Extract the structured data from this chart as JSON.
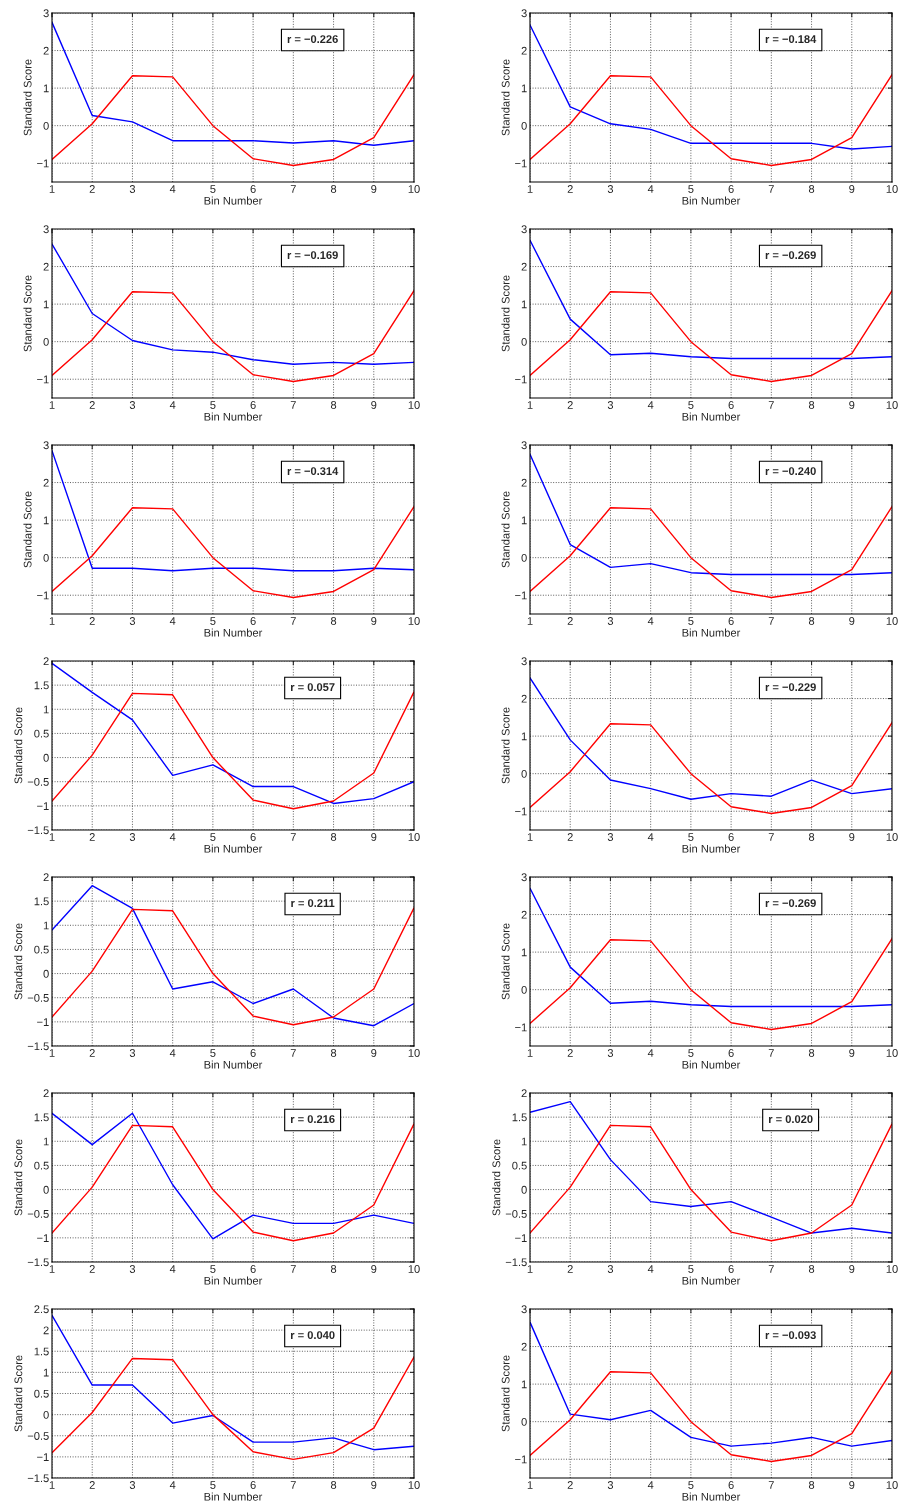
{
  "chart_data": [
    {
      "type": "line",
      "xlabel": "Bin Number",
      "ylabel": "Standard Score",
      "annotations": [
        "r = −0.226"
      ],
      "x": [
        1,
        2,
        3,
        4,
        5,
        6,
        7,
        8,
        9,
        10
      ],
      "xlim": [
        1,
        10
      ],
      "xticks": [
        1,
        2,
        3,
        4,
        5,
        6,
        7,
        8,
        9,
        10
      ],
      "ylim": [
        -1.5,
        3
      ],
      "yticks": [
        -1,
        0,
        1,
        2,
        3
      ],
      "grid": true,
      "line_style": "solid",
      "marker": "none",
      "series": [
        {
          "color": "#0000ff",
          "values": [
            2.75,
            0.27,
            0.1,
            -0.4,
            -0.4,
            -0.4,
            -0.46,
            -0.4,
            -0.52,
            -0.4
          ]
        },
        {
          "color": "#ff0000",
          "values": [
            -0.9,
            0.05,
            1.33,
            1.3,
            0.0,
            -0.88,
            -1.06,
            -0.9,
            -0.32,
            1.36
          ]
        }
      ]
    },
    {
      "type": "line",
      "xlabel": "Bin Number",
      "ylabel": "Standard Score",
      "annotations": [
        "r = −0.184"
      ],
      "x": [
        1,
        2,
        3,
        4,
        5,
        6,
        7,
        8,
        9,
        10
      ],
      "xlim": [
        1,
        10
      ],
      "xticks": [
        1,
        2,
        3,
        4,
        5,
        6,
        7,
        8,
        9,
        10
      ],
      "ylim": [
        -1.5,
        3
      ],
      "yticks": [
        -1,
        0,
        1,
        2,
        3
      ],
      "grid": true,
      "line_style": "solid",
      "marker": "none",
      "series": [
        {
          "color": "#0000ff",
          "values": [
            2.68,
            0.5,
            0.05,
            -0.1,
            -0.47,
            -0.47,
            -0.47,
            -0.47,
            -0.62,
            -0.55
          ]
        },
        {
          "color": "#ff0000",
          "values": [
            -0.9,
            0.05,
            1.33,
            1.3,
            0.0,
            -0.88,
            -1.06,
            -0.9,
            -0.32,
            1.36
          ]
        }
      ]
    },
    {
      "type": "line",
      "xlabel": "Bin Number",
      "ylabel": "Standard Score",
      "annotations": [
        "r = −0.169"
      ],
      "x": [
        1,
        2,
        3,
        4,
        5,
        6,
        7,
        8,
        9,
        10
      ],
      "xlim": [
        1,
        10
      ],
      "xticks": [
        1,
        2,
        3,
        4,
        5,
        6,
        7,
        8,
        9,
        10
      ],
      "ylim": [
        -1.5,
        3
      ],
      "yticks": [
        -1,
        0,
        1,
        2,
        3
      ],
      "grid": true,
      "line_style": "solid",
      "marker": "none",
      "series": [
        {
          "color": "#0000ff",
          "values": [
            2.6,
            0.75,
            0.03,
            -0.22,
            -0.28,
            -0.48,
            -0.6,
            -0.55,
            -0.6,
            -0.55
          ]
        },
        {
          "color": "#ff0000",
          "values": [
            -0.9,
            0.05,
            1.33,
            1.3,
            0.0,
            -0.88,
            -1.06,
            -0.9,
            -0.32,
            1.36
          ]
        }
      ]
    },
    {
      "type": "line",
      "xlabel": "Bin Number",
      "ylabel": "Standard Score",
      "annotations": [
        "r = −0.269"
      ],
      "x": [
        1,
        2,
        3,
        4,
        5,
        6,
        7,
        8,
        9,
        10
      ],
      "xlim": [
        1,
        10
      ],
      "xticks": [
        1,
        2,
        3,
        4,
        5,
        6,
        7,
        8,
        9,
        10
      ],
      "ylim": [
        -1.5,
        3
      ],
      "yticks": [
        -1,
        0,
        1,
        2,
        3
      ],
      "grid": true,
      "line_style": "solid",
      "marker": "none",
      "series": [
        {
          "color": "#0000ff",
          "values": [
            2.7,
            0.6,
            -0.35,
            -0.31,
            -0.4,
            -0.45,
            -0.45,
            -0.45,
            -0.45,
            -0.4
          ]
        },
        {
          "color": "#ff0000",
          "values": [
            -0.9,
            0.05,
            1.33,
            1.3,
            0.0,
            -0.88,
            -1.06,
            -0.9,
            -0.32,
            1.36
          ]
        }
      ]
    },
    {
      "type": "line",
      "xlabel": "Bin Number",
      "ylabel": "Standard Score",
      "annotations": [
        "r = −0.314"
      ],
      "x": [
        1,
        2,
        3,
        4,
        5,
        6,
        7,
        8,
        9,
        10
      ],
      "xlim": [
        1,
        10
      ],
      "xticks": [
        1,
        2,
        3,
        4,
        5,
        6,
        7,
        8,
        9,
        10
      ],
      "ylim": [
        -1.5,
        3
      ],
      "yticks": [
        -1,
        0,
        1,
        2,
        3
      ],
      "grid": true,
      "line_style": "solid",
      "marker": "none",
      "series": [
        {
          "color": "#0000ff",
          "values": [
            2.85,
            -0.28,
            -0.28,
            -0.35,
            -0.28,
            -0.28,
            -0.35,
            -0.35,
            -0.28,
            -0.32
          ]
        },
        {
          "color": "#ff0000",
          "values": [
            -0.9,
            0.05,
            1.33,
            1.3,
            0.0,
            -0.88,
            -1.06,
            -0.9,
            -0.32,
            1.36
          ]
        }
      ]
    },
    {
      "type": "line",
      "xlabel": "Bin Number",
      "ylabel": "Standard Score",
      "annotations": [
        "r = −0.240"
      ],
      "x": [
        1,
        2,
        3,
        4,
        5,
        6,
        7,
        8,
        9,
        10
      ],
      "xlim": [
        1,
        10
      ],
      "xticks": [
        1,
        2,
        3,
        4,
        5,
        6,
        7,
        8,
        9,
        10
      ],
      "ylim": [
        -1.5,
        3
      ],
      "yticks": [
        -1,
        0,
        1,
        2,
        3
      ],
      "grid": true,
      "line_style": "solid",
      "marker": "none",
      "series": [
        {
          "color": "#0000ff",
          "values": [
            2.75,
            0.35,
            -0.26,
            -0.16,
            -0.4,
            -0.45,
            -0.45,
            -0.45,
            -0.45,
            -0.4
          ]
        },
        {
          "color": "#ff0000",
          "values": [
            -0.9,
            0.05,
            1.33,
            1.3,
            0.0,
            -0.88,
            -1.06,
            -0.9,
            -0.32,
            1.36
          ]
        }
      ]
    },
    {
      "type": "line",
      "xlabel": "Bin Number",
      "ylabel": "Standard Score",
      "annotations": [
        "r = 0.057"
      ],
      "x": [
        1,
        2,
        3,
        4,
        5,
        6,
        7,
        8,
        9,
        10
      ],
      "xlim": [
        1,
        10
      ],
      "xticks": [
        1,
        2,
        3,
        4,
        5,
        6,
        7,
        8,
        9,
        10
      ],
      "ylim": [
        -1.5,
        2
      ],
      "yticks": [
        -1.5,
        -1,
        -0.5,
        0,
        0.5,
        1,
        1.5,
        2
      ],
      "grid": true,
      "line_style": "solid",
      "marker": "none",
      "series": [
        {
          "color": "#0000ff",
          "values": [
            1.95,
            1.35,
            0.78,
            -0.37,
            -0.15,
            -0.6,
            -0.6,
            -0.95,
            -0.85,
            -0.5
          ]
        },
        {
          "color": "#ff0000",
          "values": [
            -0.9,
            0.05,
            1.33,
            1.3,
            0.0,
            -0.88,
            -1.06,
            -0.9,
            -0.32,
            1.36
          ]
        }
      ]
    },
    {
      "type": "line",
      "xlabel": "Bin Number",
      "ylabel": "Standard Score",
      "annotations": [
        "r = −0.229"
      ],
      "x": [
        1,
        2,
        3,
        4,
        5,
        6,
        7,
        8,
        9,
        10
      ],
      "xlim": [
        1,
        10
      ],
      "xticks": [
        1,
        2,
        3,
        4,
        5,
        6,
        7,
        8,
        9,
        10
      ],
      "ylim": [
        -1.5,
        3
      ],
      "yticks": [
        -1,
        0,
        1,
        2,
        3
      ],
      "grid": true,
      "line_style": "solid",
      "marker": "none",
      "series": [
        {
          "color": "#0000ff",
          "values": [
            2.55,
            0.9,
            -0.17,
            -0.4,
            -0.68,
            -0.53,
            -0.6,
            -0.17,
            -0.53,
            -0.4
          ]
        },
        {
          "color": "#ff0000",
          "values": [
            -0.9,
            0.05,
            1.33,
            1.3,
            0.0,
            -0.88,
            -1.06,
            -0.9,
            -0.32,
            1.36
          ]
        }
      ]
    },
    {
      "type": "line",
      "xlabel": "Bin Number",
      "ylabel": "Standard Score",
      "annotations": [
        "r = 0.211"
      ],
      "x": [
        1,
        2,
        3,
        4,
        5,
        6,
        7,
        8,
        9,
        10
      ],
      "xlim": [
        1,
        10
      ],
      "xticks": [
        1,
        2,
        3,
        4,
        5,
        6,
        7,
        8,
        9,
        10
      ],
      "ylim": [
        -1.5,
        2
      ],
      "yticks": [
        -1.5,
        -1,
        -0.5,
        0,
        0.5,
        1,
        1.5,
        2
      ],
      "grid": true,
      "line_style": "solid",
      "marker": "none",
      "series": [
        {
          "color": "#0000ff",
          "values": [
            0.9,
            1.82,
            1.35,
            -0.32,
            -0.17,
            -0.62,
            -0.32,
            -0.92,
            -1.08,
            -0.62
          ]
        },
        {
          "color": "#ff0000",
          "values": [
            -0.9,
            0.05,
            1.33,
            1.3,
            0.0,
            -0.88,
            -1.06,
            -0.9,
            -0.32,
            1.36
          ]
        }
      ]
    },
    {
      "type": "line",
      "xlabel": "Bin Number",
      "ylabel": "Standard Score",
      "annotations": [
        "r = −0.269"
      ],
      "x": [
        1,
        2,
        3,
        4,
        5,
        6,
        7,
        8,
        9,
        10
      ],
      "xlim": [
        1,
        10
      ],
      "xticks": [
        1,
        2,
        3,
        4,
        5,
        6,
        7,
        8,
        9,
        10
      ],
      "ylim": [
        -1.5,
        3
      ],
      "yticks": [
        -1,
        0,
        1,
        2,
        3
      ],
      "grid": true,
      "line_style": "solid",
      "marker": "none",
      "series": [
        {
          "color": "#0000ff",
          "values": [
            2.7,
            0.6,
            -0.36,
            -0.31,
            -0.4,
            -0.45,
            -0.45,
            -0.45,
            -0.45,
            -0.4
          ]
        },
        {
          "color": "#ff0000",
          "values": [
            -0.9,
            0.05,
            1.33,
            1.3,
            0.0,
            -0.88,
            -1.06,
            -0.9,
            -0.32,
            1.36
          ]
        }
      ]
    },
    {
      "type": "line",
      "xlabel": "Bin Number",
      "ylabel": "Standard Score",
      "annotations": [
        "r = 0.216"
      ],
      "x": [
        1,
        2,
        3,
        4,
        5,
        6,
        7,
        8,
        9,
        10
      ],
      "xlim": [
        1,
        10
      ],
      "xticks": [
        1,
        2,
        3,
        4,
        5,
        6,
        7,
        8,
        9,
        10
      ],
      "ylim": [
        -1.5,
        2
      ],
      "yticks": [
        -1.5,
        -1,
        -0.5,
        0,
        0.5,
        1,
        1.5,
        2
      ],
      "grid": true,
      "line_style": "solid",
      "marker": "none",
      "series": [
        {
          "color": "#0000ff",
          "values": [
            1.58,
            0.93,
            1.58,
            0.1,
            -1.02,
            -0.53,
            -0.7,
            -0.7,
            -0.53,
            -0.7
          ]
        },
        {
          "color": "#ff0000",
          "values": [
            -0.9,
            0.05,
            1.33,
            1.3,
            0.0,
            -0.88,
            -1.06,
            -0.9,
            -0.32,
            1.36
          ]
        }
      ]
    },
    {
      "type": "line",
      "xlabel": "Bin Number",
      "ylabel": "Standard Score",
      "annotations": [
        "r = 0.020"
      ],
      "x": [
        1,
        2,
        3,
        4,
        5,
        6,
        7,
        8,
        9,
        10
      ],
      "xlim": [
        1,
        10
      ],
      "xticks": [
        1,
        2,
        3,
        4,
        5,
        6,
        7,
        8,
        9,
        10
      ],
      "ylim": [
        -1.5,
        2
      ],
      "yticks": [
        -1.5,
        -1,
        -0.5,
        0,
        0.5,
        1,
        1.5,
        2
      ],
      "grid": true,
      "line_style": "solid",
      "marker": "none",
      "series": [
        {
          "color": "#0000ff",
          "values": [
            1.6,
            1.82,
            0.62,
            -0.25,
            -0.35,
            -0.25,
            -0.57,
            -0.9,
            -0.8,
            -0.9
          ]
        },
        {
          "color": "#ff0000",
          "values": [
            -0.9,
            0.05,
            1.33,
            1.3,
            0.0,
            -0.88,
            -1.06,
            -0.9,
            -0.32,
            1.36
          ]
        }
      ]
    },
    {
      "type": "line",
      "xlabel": "Bin Number",
      "ylabel": "Standard Score",
      "annotations": [
        "r = 0.040"
      ],
      "x": [
        1,
        2,
        3,
        4,
        5,
        6,
        7,
        8,
        9,
        10
      ],
      "xlim": [
        1,
        10
      ],
      "xticks": [
        1,
        2,
        3,
        4,
        5,
        6,
        7,
        8,
        9,
        10
      ],
      "ylim": [
        -1.5,
        2.5
      ],
      "yticks": [
        -1.5,
        -1,
        -0.5,
        0,
        0.5,
        1,
        1.5,
        2,
        2.5
      ],
      "grid": true,
      "line_style": "solid",
      "marker": "none",
      "series": [
        {
          "color": "#0000ff",
          "values": [
            2.35,
            0.7,
            0.7,
            -0.2,
            -0.02,
            -0.65,
            -0.65,
            -0.55,
            -0.83,
            -0.75
          ]
        },
        {
          "color": "#ff0000",
          "values": [
            -0.9,
            0.05,
            1.33,
            1.3,
            0.0,
            -0.88,
            -1.06,
            -0.9,
            -0.32,
            1.36
          ]
        }
      ]
    },
    {
      "type": "line",
      "xlabel": "Bin Number",
      "ylabel": "Standard Score",
      "annotations": [
        "r = −0.093"
      ],
      "x": [
        1,
        2,
        3,
        4,
        5,
        6,
        7,
        8,
        9,
        10
      ],
      "xlim": [
        1,
        10
      ],
      "xticks": [
        1,
        2,
        3,
        4,
        5,
        6,
        7,
        8,
        9,
        10
      ],
      "ylim": [
        -1.5,
        3
      ],
      "yticks": [
        -1,
        0,
        1,
        2,
        3
      ],
      "grid": true,
      "line_style": "solid",
      "marker": "none",
      "series": [
        {
          "color": "#0000ff",
          "values": [
            2.65,
            0.2,
            0.05,
            0.3,
            -0.42,
            -0.65,
            -0.57,
            -0.42,
            -0.65,
            -0.5
          ]
        },
        {
          "color": "#ff0000",
          "values": [
            -0.9,
            0.05,
            1.33,
            1.3,
            0.0,
            -0.88,
            -1.06,
            -0.9,
            -0.32,
            1.36
          ]
        }
      ]
    }
  ]
}
